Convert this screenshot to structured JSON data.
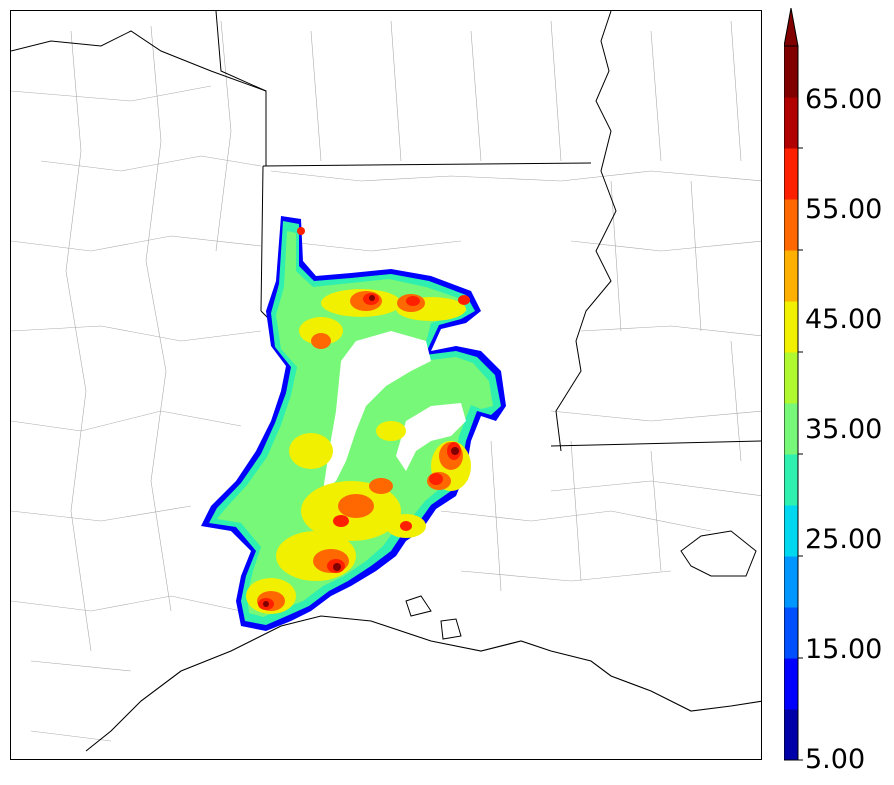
{
  "colorbar": {
    "labels": [
      "5.00",
      "15.00",
      "25.00",
      "35.00",
      "45.00",
      "55.00",
      "65.00"
    ],
    "extend": "max",
    "colors": [
      "#0000a8",
      "#0000ff",
      "#0050ff",
      "#0096ff",
      "#00d8f0",
      "#30f0b0",
      "#78f878",
      "#b0f830",
      "#f0f000",
      "#ffb000",
      "#ff6800",
      "#ff2000",
      "#b00000",
      "#800000"
    ]
  },
  "map": {
    "field": "reflectivity-like shaded swath",
    "boundaries": [
      "state-borders",
      "county-lines",
      "coastline",
      "river"
    ]
  }
}
